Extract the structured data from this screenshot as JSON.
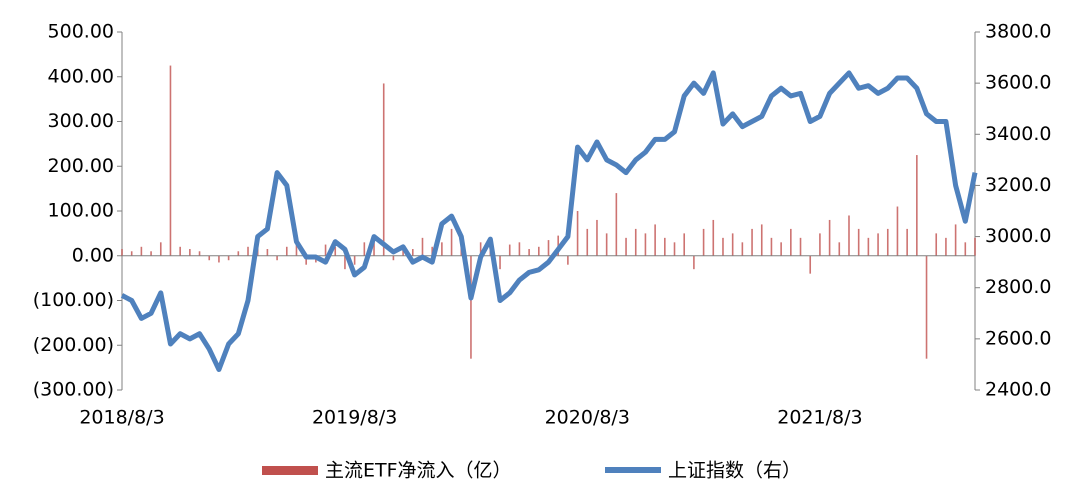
{
  "chart_data": {
    "type": "bar",
    "categories": [
      "2018/8/3",
      null,
      null,
      null,
      null,
      null,
      null,
      null,
      null,
      null,
      null,
      null,
      null,
      null,
      null,
      null,
      null,
      null,
      null,
      null,
      null,
      null,
      null,
      null,
      "2019/8/3",
      null,
      null,
      null,
      null,
      null,
      null,
      null,
      null,
      null,
      null,
      null,
      null,
      null,
      null,
      null,
      null,
      null,
      null,
      null,
      null,
      null,
      null,
      null,
      "2020/8/3",
      null,
      null,
      null,
      null,
      null,
      null,
      null,
      null,
      null,
      null,
      null,
      null,
      null,
      null,
      null,
      null,
      null,
      null,
      null,
      null,
      null,
      null,
      null,
      "2021/8/3",
      null,
      null,
      null,
      null,
      null,
      null,
      null,
      null,
      null,
      null,
      null,
      null,
      null,
      null,
      null,
      null
    ],
    "series": [
      {
        "name": "主流ETF净流入（亿）",
        "type": "bar",
        "color": "#c0504d",
        "values": [
          15,
          10,
          20,
          10,
          30,
          425,
          20,
          15,
          10,
          -10,
          -15,
          -10,
          10,
          20,
          30,
          15,
          -10,
          20,
          50,
          -20,
          -15,
          25,
          20,
          -30,
          -20,
          30,
          30,
          385,
          -10,
          25,
          15,
          40,
          20,
          30,
          60,
          50,
          -230,
          30,
          20,
          -30,
          25,
          30,
          15,
          20,
          35,
          45,
          -20,
          100,
          60,
          80,
          50,
          140,
          40,
          60,
          50,
          70,
          40,
          30,
          50,
          -30,
          60,
          80,
          40,
          50,
          30,
          60,
          70,
          40,
          30,
          60,
          40,
          -40,
          50,
          80,
          30,
          90,
          60,
          40,
          50,
          60,
          110,
          60,
          225,
          -230,
          50,
          40,
          70,
          30,
          40
        ]
      },
      {
        "name": "上证指数（右）",
        "type": "line",
        "axis": "y2",
        "color": "#4f81bd",
        "values": [
          2770,
          2750,
          2680,
          2700,
          2780,
          2580,
          2620,
          2600,
          2620,
          2560,
          2480,
          2580,
          2620,
          2750,
          3000,
          3030,
          3250,
          3200,
          2980,
          2920,
          2920,
          2900,
          2980,
          2950,
          2850,
          2880,
          3000,
          2970,
          2940,
          2960,
          2900,
          2920,
          2900,
          3050,
          3080,
          3000,
          2760,
          2920,
          2990,
          2750,
          2780,
          2830,
          2860,
          2870,
          2900,
          2950,
          3000,
          3350,
          3300,
          3370,
          3300,
          3280,
          3250,
          3300,
          3330,
          3380,
          3380,
          3410,
          3550,
          3600,
          3560,
          3640,
          3440,
          3480,
          3430,
          3450,
          3470,
          3550,
          3580,
          3550,
          3560,
          3450,
          3470,
          3560,
          3600,
          3640,
          3580,
          3590,
          3560,
          3580,
          3620,
          3620,
          3580,
          3480,
          3450,
          3450,
          3200,
          3060,
          3250
        ]
      }
    ],
    "ylim": [
      -300,
      500
    ],
    "yticks": [
      {
        "value": 500,
        "label": "500.00"
      },
      {
        "value": 400,
        "label": "400.00"
      },
      {
        "value": 300,
        "label": "300.00"
      },
      {
        "value": 200,
        "label": "200.00"
      },
      {
        "value": 100,
        "label": "100.00"
      },
      {
        "value": 0,
        "label": "0.00"
      },
      {
        "value": -100,
        "label": "(100.00)"
      },
      {
        "value": -200,
        "label": "(200.00)"
      },
      {
        "value": -300,
        "label": "(300.00)"
      }
    ],
    "y2lim": [
      2400,
      3800
    ],
    "y2ticks": [
      {
        "value": 3800,
        "label": "3800.0"
      },
      {
        "value": 3600,
        "label": "3600.0"
      },
      {
        "value": 3400,
        "label": "3400.0"
      },
      {
        "value": 3200,
        "label": "3200.0"
      },
      {
        "value": 3000,
        "label": "3000.0"
      },
      {
        "value": 2800,
        "label": "2800.0"
      },
      {
        "value": 2600,
        "label": "2600.0"
      },
      {
        "value": 2400,
        "label": "2400.0"
      }
    ],
    "negative_label_color": "#ff0000",
    "legend": "bottom"
  }
}
